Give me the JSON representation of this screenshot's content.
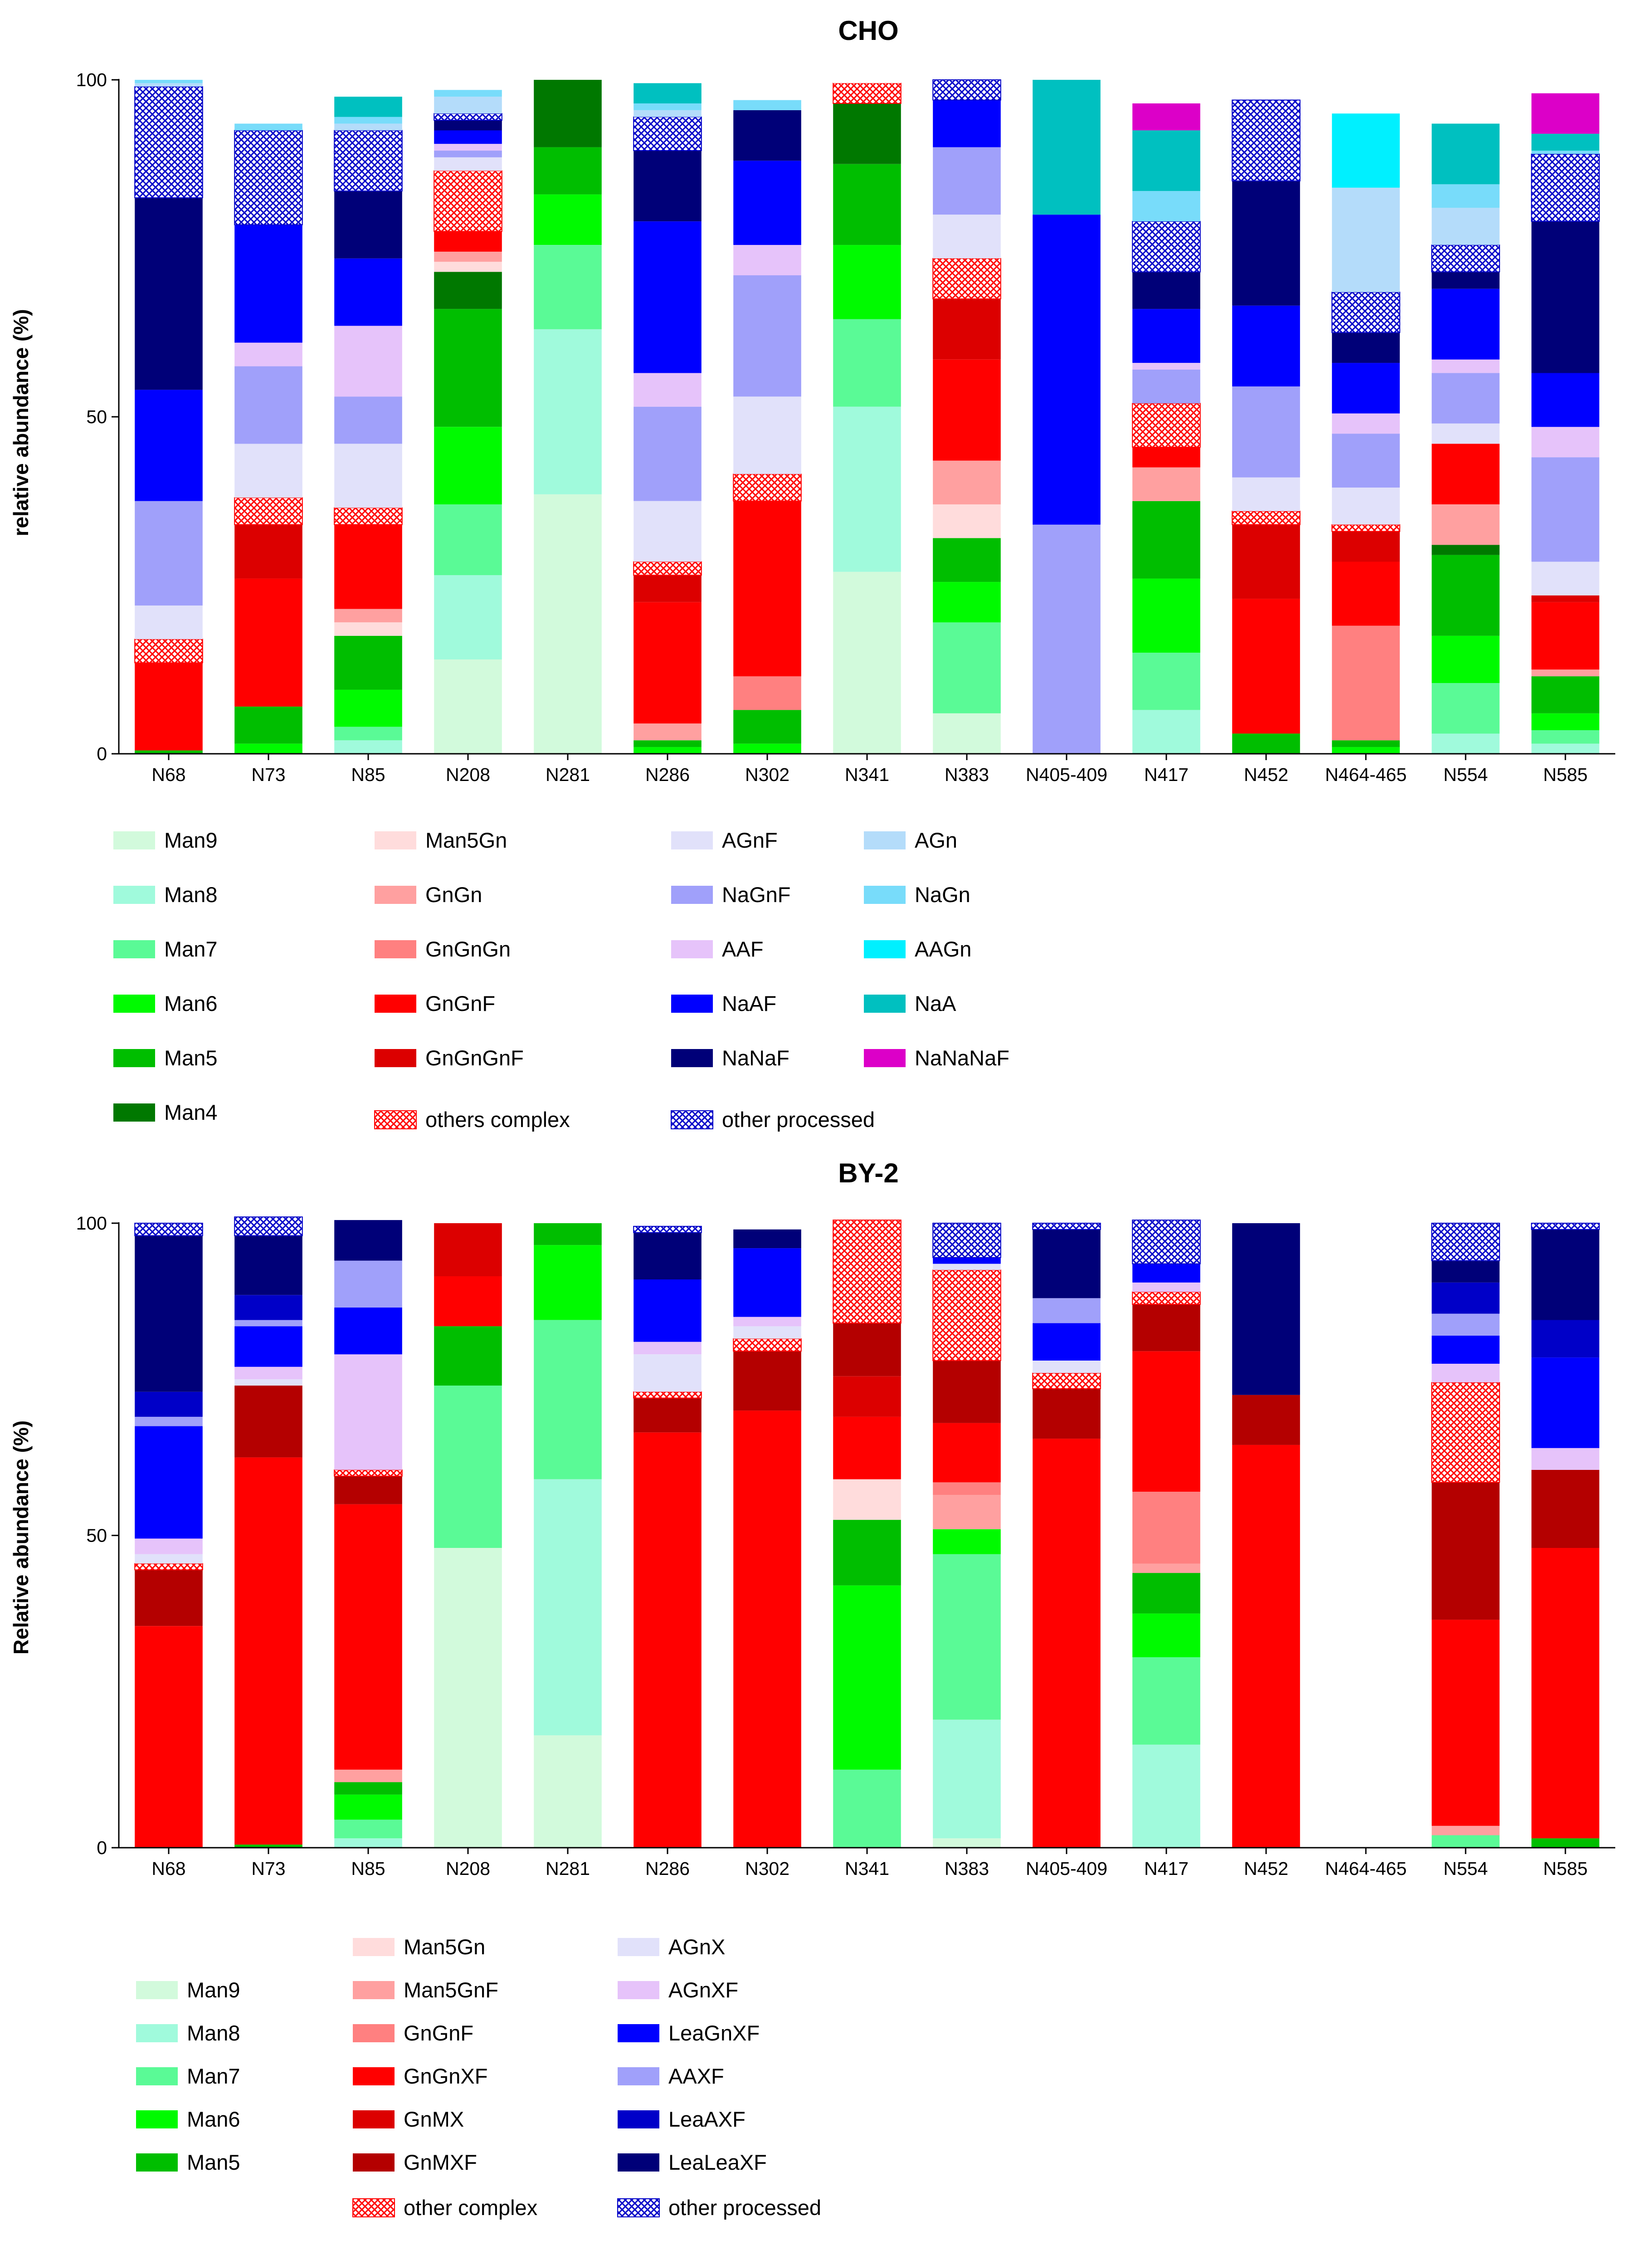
{
  "chart_data": [
    {
      "type": "bar",
      "stacked": true,
      "title": "CHO",
      "xlabel": "",
      "ylabel": "relative abundance (%)",
      "ylim": [
        0,
        100
      ],
      "yticks": [
        "0",
        "50",
        "100"
      ],
      "categories": [
        "N68",
        "N73",
        "N85",
        "N208",
        "N281",
        "N286",
        "N302",
        "N341",
        "N383",
        "N405-409",
        "N417",
        "N452",
        "N464-465",
        "N554",
        "N585"
      ],
      "legend_columns": [
        [
          "Man9",
          "Man8",
          "Man7",
          "Man6",
          "Man5",
          "Man4"
        ],
        [
          "Man5Gn",
          "GnGn",
          "GnGnGn",
          "GnGnF",
          "GnGnGnF",
          "others complex"
        ],
        [
          "AGnF",
          "NaGnF",
          "AAF",
          "NaAF",
          "NaNaF",
          "other processed"
        ],
        [
          "AGn",
          "NaGn",
          "AAGn",
          "NaA",
          "NaNaNaF"
        ]
      ],
      "series": [
        {
          "name": "Man9",
          "color": "#d2fadc",
          "values": [
            0,
            0,
            0,
            14,
            38.5,
            0,
            0,
            27,
            6,
            0,
            0,
            0,
            0,
            0,
            0
          ]
        },
        {
          "name": "Man8",
          "color": "#a0fadc",
          "values": [
            0,
            0,
            2,
            12.5,
            24.5,
            0,
            0,
            24.5,
            0,
            0,
            6.5,
            0,
            0,
            3,
            1.5
          ]
        },
        {
          "name": "Man7",
          "color": "#5afa96",
          "values": [
            0,
            0,
            2,
            10.5,
            12.5,
            0,
            0,
            13,
            13.5,
            0,
            8.5,
            0,
            0,
            7.5,
            2
          ]
        },
        {
          "name": "Man6",
          "color": "#00fa00",
          "values": [
            0,
            1.5,
            5.5,
            11.5,
            7.5,
            1,
            1.5,
            11,
            6,
            0,
            11,
            0,
            1,
            7,
            2.5
          ]
        },
        {
          "name": "Man5",
          "color": "#00be00",
          "values": [
            0.5,
            5.5,
            8,
            17.5,
            7,
            1,
            5,
            12,
            6.5,
            0,
            11.5,
            3,
            1,
            12,
            5.5
          ]
        },
        {
          "name": "Man4",
          "color": "#007800",
          "values": [
            0,
            0,
            0,
            5.5,
            10,
            0,
            0,
            9,
            0,
            0,
            0,
            0,
            0,
            1.5,
            0
          ]
        },
        {
          "name": "Man5Gn",
          "color": "#ffdcdc",
          "values": [
            0,
            0,
            2,
            1.5,
            0,
            0,
            0,
            0,
            5,
            0,
            0,
            0,
            0,
            0,
            0
          ]
        },
        {
          "name": "GnGn",
          "color": "#ffa0a0",
          "values": [
            0,
            0,
            2,
            1.5,
            0,
            2.5,
            0,
            0,
            6.5,
            0,
            5,
            0,
            0,
            6,
            1
          ]
        },
        {
          "name": "GnGnGn",
          "color": "#ff8080",
          "values": [
            0,
            0,
            0,
            0,
            0,
            0,
            5,
            0,
            0,
            0,
            0,
            0,
            17,
            0,
            0
          ]
        },
        {
          "name": "GnGnF",
          "color": "#ff0000",
          "values": [
            13,
            19,
            12.5,
            3,
            0,
            18,
            26,
            0,
            15,
            0,
            3,
            20,
            9.5,
            9,
            10
          ]
        },
        {
          "name": "GnGnGnF",
          "color": "#dc0000",
          "values": [
            0,
            8,
            0,
            0,
            0,
            4,
            0,
            0,
            9,
            0,
            0,
            11,
            4.5,
            0,
            1
          ]
        },
        {
          "name": "others complex",
          "color": "#ff0000",
          "pattern": "crosshatch",
          "values": [
            3.5,
            4,
            2.5,
            9,
            0,
            2,
            4,
            3,
            6,
            0,
            6.5,
            2,
            1,
            0,
            0
          ]
        },
        {
          "name": "AGnF",
          "color": "#e1e1fa",
          "values": [
            5,
            8,
            9.5,
            2,
            0,
            9,
            11.5,
            0,
            6.5,
            0,
            0,
            5,
            5.5,
            3,
            5
          ]
        },
        {
          "name": "NaGnF",
          "color": "#a0a0fa",
          "values": [
            15.5,
            11.5,
            7,
            1,
            0,
            14,
            18,
            0,
            10,
            34,
            5,
            13.5,
            8,
            7.5,
            15.5
          ]
        },
        {
          "name": "AAF",
          "color": "#e6c3fa",
          "values": [
            0,
            3.5,
            10.5,
            1,
            0,
            5,
            4.5,
            0,
            0,
            0,
            1,
            0,
            3,
            2,
            4.5
          ]
        },
        {
          "name": "NaAF",
          "color": "#0000ff",
          "values": [
            16.5,
            17.5,
            10,
            2,
            0,
            22.5,
            12.5,
            0,
            7,
            46,
            8,
            12,
            7.5,
            10.5,
            8
          ]
        },
        {
          "name": "NaNaF",
          "color": "#000078",
          "values": [
            28.5,
            0,
            10,
            1.5,
            0,
            10.5,
            7.5,
            0,
            0,
            0,
            5.5,
            18.5,
            4.5,
            2.5,
            22.5
          ]
        },
        {
          "name": "other processed",
          "color": "#0000c8",
          "pattern": "crosshatch",
          "values": [
            16.5,
            14,
            9,
            1,
            0,
            5,
            0,
            0,
            3,
            0,
            7.5,
            12,
            6,
            4,
            10
          ]
        },
        {
          "name": "AGn",
          "color": "#b4dcfa",
          "values": [
            0.5,
            0,
            1,
            2.5,
            0,
            1,
            0,
            0,
            0,
            0,
            0,
            0,
            15.5,
            5.5,
            0
          ]
        },
        {
          "name": "NaGn",
          "color": "#78dcfa",
          "values": [
            0.5,
            1,
            1,
            1,
            0,
            1,
            1.5,
            0,
            0,
            0,
            4.5,
            0,
            0,
            3.5,
            0.5
          ]
        },
        {
          "name": "AAGn",
          "color": "#00f0ff",
          "values": [
            0,
            0,
            0,
            0,
            0,
            0,
            0,
            0,
            0,
            0,
            0,
            0,
            11,
            0,
            0
          ]
        },
        {
          "name": "NaA",
          "color": "#00c0c0",
          "values": [
            0,
            0,
            3,
            0,
            0,
            3,
            0,
            0,
            0,
            20,
            9,
            0,
            0,
            9,
            2.5
          ]
        },
        {
          "name": "NaNaNaF",
          "color": "#dc00c8",
          "values": [
            0,
            0,
            0,
            0,
            0,
            0,
            0,
            0,
            0,
            0,
            4,
            0,
            0,
            0,
            6
          ]
        },
        {
          "name": "__white",
          "color": "#ffffff",
          "values": [
            0,
            0,
            0,
            0,
            0,
            0,
            8,
            0.5,
            0,
            0,
            0,
            0,
            0,
            0,
            0
          ]
        }
      ]
    },
    {
      "type": "bar",
      "stacked": true,
      "title": "BY-2",
      "xlabel": "",
      "ylabel": "Relative abundance (%)",
      "ylim": [
        0,
        100
      ],
      "yticks": [
        "0",
        "50",
        "100"
      ],
      "categories": [
        "N68",
        "N73",
        "N85",
        "N208",
        "N281",
        "N286",
        "N302",
        "N341",
        "N383",
        "N405-409",
        "N417",
        "N452",
        "N464-465",
        "N554",
        "N585"
      ],
      "legend_columns": [
        [
          "Man9",
          "Man8",
          "Man7",
          "Man6",
          "Man5"
        ],
        [
          "Man5Gn",
          "Man5GnF",
          "GnGnF",
          "GnGnXF",
          "GnMX",
          "GnMXF",
          "other complex"
        ],
        [
          "AGnX",
          "AGnXF",
          "LeaGnXF",
          "AAXF",
          "LeaAXF",
          "LeaLeaXF",
          "other processed"
        ]
      ],
      "series": [
        {
          "name": "Man9",
          "color": "#d2fadc",
          "values": [
            0,
            0,
            0,
            48,
            18,
            0,
            0,
            0,
            1.5,
            0,
            0,
            0,
            0,
            0,
            0
          ]
        },
        {
          "name": "Man8",
          "color": "#a0fadc",
          "values": [
            0,
            0,
            1.5,
            0,
            41,
            0,
            0,
            0,
            19,
            0,
            16.5,
            0,
            0,
            0,
            0
          ]
        },
        {
          "name": "Man7",
          "color": "#5afa96",
          "values": [
            0,
            0,
            3,
            26,
            25.5,
            0,
            0,
            12.5,
            26.5,
            0,
            14,
            0,
            0,
            2,
            0
          ]
        },
        {
          "name": "Man6",
          "color": "#00fa00",
          "values": [
            0,
            0,
            4,
            0,
            12,
            0,
            0,
            29.5,
            4,
            0,
            7,
            0,
            0,
            0,
            0
          ]
        },
        {
          "name": "Man5",
          "color": "#00be00",
          "values": [
            0,
            0.5,
            2,
            9.5,
            3.5,
            0,
            0,
            10.5,
            0,
            0,
            6.5,
            0,
            0,
            0,
            1.5
          ]
        },
        {
          "name": "Man5Gn",
          "color": "#ffdcdc",
          "values": [
            0,
            0,
            0,
            0,
            0,
            0,
            0,
            6.5,
            0,
            0,
            0,
            0,
            0,
            0,
            0
          ]
        },
        {
          "name": "Man5GnF",
          "color": "#ffa0a0",
          "values": [
            0,
            0,
            2,
            0,
            0,
            0,
            0,
            0,
            5.5,
            0,
            1.5,
            0,
            0,
            1.5,
            0
          ]
        },
        {
          "name": "GnGnF",
          "color": "#ff8080",
          "values": [
            0,
            0,
            0,
            0,
            0,
            0,
            0,
            0,
            2,
            0,
            11.5,
            0,
            0,
            0,
            0
          ]
        },
        {
          "name": "GnGnXF",
          "color": "#ff0000",
          "values": [
            35.5,
            62,
            42.5,
            8,
            0,
            66.5,
            70,
            10,
            9.5,
            65.5,
            22.5,
            64.5,
            0,
            33,
            46.5
          ]
        },
        {
          "name": "GnMX",
          "color": "#dc0000",
          "values": [
            0,
            0,
            0,
            8.5,
            0,
            0,
            0,
            6.5,
            0,
            0,
            0,
            0,
            0,
            0,
            0
          ]
        },
        {
          "name": "GnMXF",
          "color": "#b40000",
          "values": [
            9,
            11.5,
            4.5,
            0,
            0,
            5.5,
            9.5,
            8.5,
            10,
            8,
            7.5,
            8,
            0,
            22,
            12.5
          ]
        },
        {
          "name": "other complex",
          "color": "#ff0000",
          "pattern": "crosshatch",
          "values": [
            1,
            0,
            1,
            0,
            0,
            1,
            2,
            16.5,
            14.5,
            2.5,
            2,
            0,
            0,
            16,
            0
          ]
        },
        {
          "name": "AGnX",
          "color": "#e1e1fa",
          "values": [
            1.5,
            1,
            0,
            0,
            0,
            6,
            2,
            0,
            1,
            2,
            0,
            0,
            0,
            0,
            0
          ]
        },
        {
          "name": "AGnXF",
          "color": "#e6c3fa",
          "values": [
            2.5,
            2,
            18.5,
            0,
            0,
            2,
            1.5,
            0,
            0,
            0,
            1.5,
            0,
            0,
            3,
            3.5
          ]
        },
        {
          "name": "LeaGnXF",
          "color": "#0000ff",
          "values": [
            18,
            6.5,
            7.5,
            0,
            0,
            10,
            11,
            0,
            1,
            6,
            3,
            0,
            0,
            4.5,
            14.5
          ]
        },
        {
          "name": "AAXF",
          "color": "#a0a0fa",
          "values": [
            1.5,
            1,
            7.5,
            0,
            0,
            0,
            0,
            0,
            0,
            4,
            0,
            0,
            0,
            3.5,
            0
          ]
        },
        {
          "name": "LeaAXF",
          "color": "#0000c8",
          "values": [
            4,
            4,
            0,
            0,
            0,
            0,
            0,
            0,
            0,
            0,
            0,
            0,
            0,
            5,
            6
          ]
        },
        {
          "name": "LeaLeaXF",
          "color": "#000078",
          "values": [
            25,
            9.5,
            6.5,
            0,
            0,
            7.5,
            3,
            0,
            0,
            11,
            0,
            27.5,
            0,
            3.5,
            14.5
          ]
        },
        {
          "name": "other processed",
          "color": "#0000c8",
          "pattern": "crosshatch",
          "values": [
            2,
            3,
            0,
            0,
            0,
            1,
            0,
            0,
            5.5,
            1,
            7,
            0,
            0,
            6,
            1
          ]
        }
      ]
    }
  ]
}
